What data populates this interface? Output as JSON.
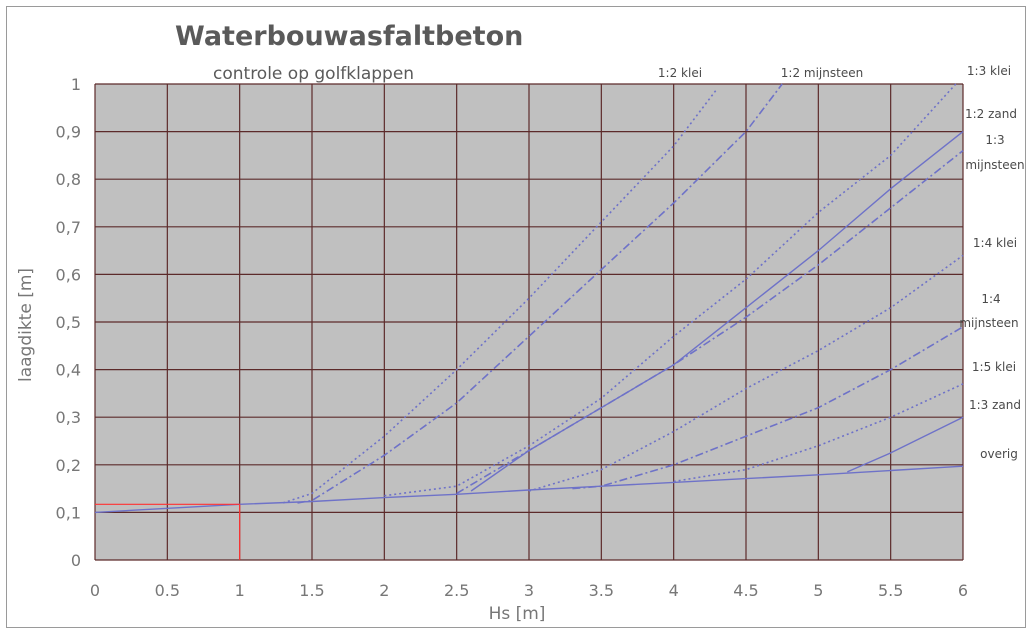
{
  "chart_data": {
    "type": "line",
    "title": "Waterbouwasfaltbeton",
    "subtitle": "controle op golfklappen",
    "xlabel": "Hs [m]",
    "ylabel": "laagdikte [m]",
    "xlim": [
      0,
      6
    ],
    "ylim": [
      0,
      1
    ],
    "xticks": [
      "0",
      "0.5",
      "1",
      "1.5",
      "2",
      "2.5",
      "3",
      "3.5",
      "4",
      "4.5",
      "5",
      "5.5",
      "6"
    ],
    "yticks": [
      "0",
      "0,1",
      "0,2",
      "0,3",
      "0,4",
      "0,5",
      "0,6",
      "0,7",
      "0,8",
      "0,9",
      "1"
    ],
    "grid": true,
    "colors": {
      "series": "#6e72c8",
      "plot_bg": "#c0c0c0",
      "grid": "#5c2a2a",
      "marker": "#ff3333"
    },
    "marker_point": {
      "x": 1.0,
      "y": 0.117
    },
    "series": [
      {
        "name": "overig",
        "style": "solid",
        "points": [
          [
            0,
            0.1
          ],
          [
            1.0,
            0.117
          ],
          [
            1.5,
            0.123
          ],
          [
            2,
            0.131
          ],
          [
            2.5,
            0.138
          ],
          [
            3,
            0.147
          ],
          [
            3.5,
            0.155
          ],
          [
            4,
            0.163
          ],
          [
            4.5,
            0.171
          ],
          [
            5,
            0.179
          ],
          [
            5.5,
            0.188
          ],
          [
            6,
            0.197
          ]
        ]
      },
      {
        "name": "1:2 klei",
        "style": "dotted",
        "points": [
          [
            1.3,
            0.12
          ],
          [
            1.5,
            0.14
          ],
          [
            2.0,
            0.26
          ],
          [
            2.5,
            0.4
          ],
          [
            3.0,
            0.55
          ],
          [
            3.5,
            0.71
          ],
          [
            4.0,
            0.87
          ],
          [
            4.3,
            0.99
          ]
        ]
      },
      {
        "name": "1:2 mijnsteen",
        "style": "dashdot",
        "points": [
          [
            1.4,
            0.12
          ],
          [
            1.5,
            0.125
          ],
          [
            2.0,
            0.22
          ],
          [
            2.5,
            0.33
          ],
          [
            3.0,
            0.47
          ],
          [
            3.5,
            0.61
          ],
          [
            4.0,
            0.75
          ],
          [
            4.5,
            0.9
          ],
          [
            4.75,
            1.0
          ]
        ]
      },
      {
        "name": "1:3 klei",
        "style": "dotted",
        "points": [
          [
            2.0,
            0.135
          ],
          [
            2.5,
            0.155
          ],
          [
            3.0,
            0.24
          ],
          [
            3.5,
            0.34
          ],
          [
            4.0,
            0.47
          ],
          [
            4.5,
            0.59
          ],
          [
            5.0,
            0.73
          ],
          [
            5.5,
            0.85
          ],
          [
            5.95,
            1.0
          ]
        ]
      },
      {
        "name": "1:2 zand",
        "style": "solid",
        "points": [
          [
            2.6,
            0.145
          ],
          [
            3.0,
            0.23
          ],
          [
            3.5,
            0.32
          ],
          [
            4.0,
            0.41
          ],
          [
            4.5,
            0.53
          ],
          [
            5.0,
            0.65
          ],
          [
            5.5,
            0.78
          ],
          [
            6.0,
            0.9
          ]
        ]
      },
      {
        "name": "1:3 mijnsteen",
        "style": "dashdot",
        "points": [
          [
            2.5,
            0.14
          ],
          [
            3.0,
            0.23
          ],
          [
            3.5,
            0.32
          ],
          [
            4.0,
            0.41
          ],
          [
            4.5,
            0.51
          ],
          [
            5.0,
            0.62
          ],
          [
            5.5,
            0.74
          ],
          [
            6.0,
            0.86
          ]
        ]
      },
      {
        "name": "1:4 klei",
        "style": "dotted",
        "points": [
          [
            3.0,
            0.145
          ],
          [
            3.5,
            0.19
          ],
          [
            4.0,
            0.27
          ],
          [
            4.5,
            0.36
          ],
          [
            5.0,
            0.44
          ],
          [
            5.5,
            0.53
          ],
          [
            6.0,
            0.64
          ]
        ]
      },
      {
        "name": "1:4 mijnsteen",
        "style": "dashdot",
        "points": [
          [
            3.3,
            0.15
          ],
          [
            3.5,
            0.155
          ],
          [
            4.0,
            0.2
          ],
          [
            4.5,
            0.26
          ],
          [
            5.0,
            0.32
          ],
          [
            5.5,
            0.4
          ],
          [
            6.0,
            0.49
          ]
        ]
      },
      {
        "name": "1:5 klei",
        "style": "dotted",
        "points": [
          [
            4.0,
            0.165
          ],
          [
            4.5,
            0.19
          ],
          [
            5.0,
            0.24
          ],
          [
            5.5,
            0.3
          ],
          [
            6.0,
            0.37
          ]
        ]
      },
      {
        "name": "1:3 zand",
        "style": "solid",
        "points": [
          [
            5.2,
            0.185
          ],
          [
            5.5,
            0.225
          ],
          [
            6.0,
            0.3
          ]
        ]
      }
    ],
    "series_labels": [
      "1:2 klei",
      "1:2 mijnsteen",
      "1:3 klei",
      "1:2 zand",
      "1:3",
      "mijnsteen",
      "1:4 klei",
      "1:4",
      "mijnsteen",
      "1:5 klei",
      "1:3 zand",
      "overig"
    ]
  }
}
